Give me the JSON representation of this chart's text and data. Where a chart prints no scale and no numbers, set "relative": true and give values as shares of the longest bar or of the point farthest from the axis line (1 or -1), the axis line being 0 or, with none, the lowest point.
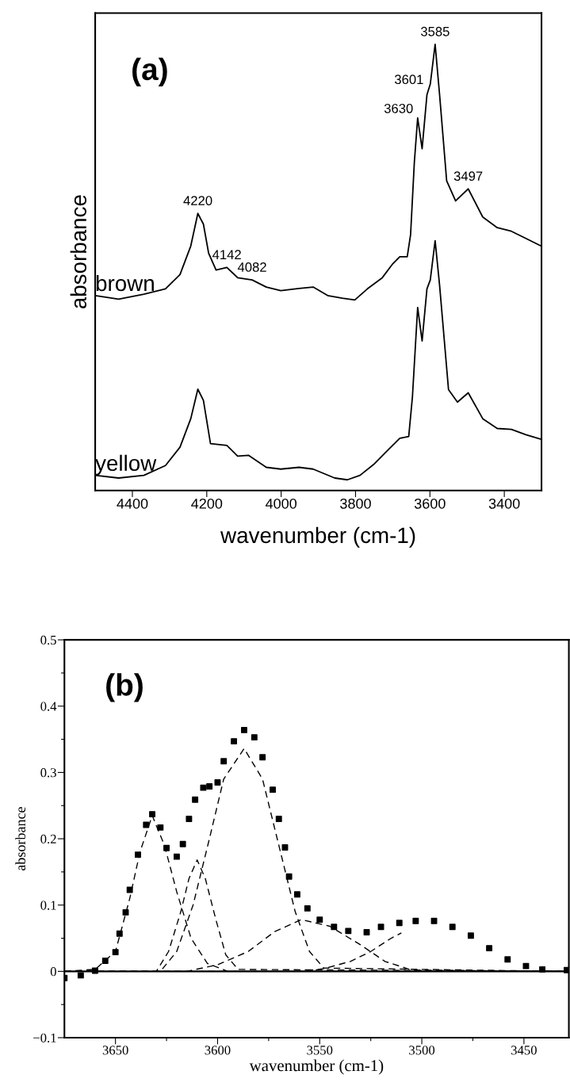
{
  "chart_data": [
    {
      "type": "line",
      "title": "(a)",
      "xlabel": "wavenumber (cm-1)",
      "ylabel": "absorbance",
      "relative": true,
      "xlim": [
        4500,
        3300
      ],
      "xticks": [
        4400,
        4200,
        4000,
        3800,
        3600,
        3400
      ],
      "grid": false,
      "legend": false,
      "series": [
        {
          "name": "brown",
          "color": "#000000",
          "x": [
            4500,
            4437,
            4369,
            4311,
            4272,
            4243,
            4224,
            4209,
            4195,
            4175,
            4146,
            4117,
            4078,
            4040,
            4001,
            3952,
            3914,
            3875,
            3836,
            3802,
            3768,
            3729,
            3700,
            3681,
            3661,
            3652,
            3642,
            3633,
            3621,
            3608,
            3599,
            3586,
            3574,
            3555,
            3531,
            3497,
            3458,
            3419,
            3381,
            3342,
            3301
          ],
          "values": [
            0.437,
            0.429,
            0.44,
            0.452,
            0.484,
            0.548,
            0.621,
            0.597,
            0.532,
            0.494,
            0.5,
            0.477,
            0.472,
            0.456,
            0.448,
            0.453,
            0.456,
            0.437,
            0.431,
            0.427,
            0.452,
            0.476,
            0.508,
            0.524,
            0.524,
            0.573,
            0.734,
            0.835,
            0.766,
            0.887,
            0.911,
            1.0,
            0.887,
            0.694,
            0.649,
            0.676,
            0.613,
            0.589,
            0.581,
            0.565,
            0.548
          ]
        },
        {
          "name": "yellow",
          "color": "#000000",
          "x": [
            4500,
            4437,
            4369,
            4311,
            4272,
            4243,
            4224,
            4209,
            4190,
            4146,
            4117,
            4088,
            4040,
            4001,
            3952,
            3914,
            3856,
            3822,
            3788,
            3749,
            3710,
            3681,
            3657,
            3647,
            3633,
            3621,
            3608,
            3599,
            3586,
            3574,
            3550,
            3526,
            3497,
            3458,
            3419,
            3381,
            3342,
            3301
          ],
          "values": [
            0.034,
            0.028,
            0.034,
            0.056,
            0.097,
            0.161,
            0.227,
            0.202,
            0.105,
            0.101,
            0.077,
            0.079,
            0.052,
            0.048,
            0.052,
            0.048,
            0.028,
            0.024,
            0.034,
            0.06,
            0.093,
            0.117,
            0.121,
            0.21,
            0.41,
            0.335,
            0.452,
            0.472,
            0.56,
            0.46,
            0.226,
            0.198,
            0.219,
            0.161,
            0.139,
            0.137,
            0.125,
            0.115
          ]
        }
      ],
      "annotations": [
        {
          "text": "4220",
          "x": 4224,
          "y": 0.621
        },
        {
          "text": "4142",
          "x": 4146,
          "y": 0.5
        },
        {
          "text": "4082",
          "x": 4078,
          "y": 0.472
        },
        {
          "text": "3630",
          "x": 3633,
          "y": 0.835
        },
        {
          "text": "3601",
          "x": 3605,
          "y": 0.9
        },
        {
          "text": "3585",
          "x": 3586,
          "y": 1.0
        },
        {
          "text": "3497",
          "x": 3497,
          "y": 0.676
        }
      ]
    },
    {
      "type": "line",
      "title": "(b)",
      "xlabel": "wavenumber (cm-1)",
      "ylabel": "absorbance",
      "xlim": [
        3675,
        3428
      ],
      "ylim": [
        -0.1,
        0.5
      ],
      "xticks": [
        3650,
        {
          "value": 3625,
          "label": null
        },
        3600,
        {
          "value": 3575,
          "label": null
        },
        3550,
        {
          "value": 3525,
          "label": null
        },
        3500,
        {
          "value": 3475,
          "label": null
        },
        3450
      ],
      "yticks": [
        {
          "value": -0.1,
          "label": "−0.1"
        },
        {
          "value": -0.05,
          "label": null
        },
        0,
        {
          "value": 0.05,
          "label": null
        },
        0.1,
        {
          "value": 0.15,
          "label": null
        },
        0.2,
        {
          "value": 0.25,
          "label": null
        },
        0.3,
        {
          "value": 0.35,
          "label": null
        },
        0.4,
        {
          "value": 0.45,
          "label": null
        },
        0.5
      ],
      "grid": false,
      "legend": false,
      "ref_lines": [
        {
          "axis": "y",
          "value": 0,
          "label": null,
          "color": "#000000",
          "line_style": "solid"
        }
      ],
      "series": [
        {
          "type": "scatter",
          "marker": "square",
          "color": "#000000",
          "x": [
            3675,
            3667,
            3660,
            3655,
            3650,
            3648,
            3645,
            3643,
            3639,
            3635,
            3632,
            3628,
            3625,
            3620,
            3617,
            3614,
            3611,
            3607,
            3604,
            3600,
            3597,
            3592,
            3587,
            3582,
            3578,
            3573,
            3570,
            3567,
            3565,
            3561,
            3556,
            3550,
            3543,
            3536,
            3527,
            3520,
            3511,
            3503,
            3494,
            3485,
            3476,
            3467,
            3458,
            3449,
            3441,
            3429
          ],
          "values": [
            -0.01,
            -0.006,
            0.001,
            0.016,
            0.029,
            0.057,
            0.089,
            0.123,
            0.176,
            0.221,
            0.237,
            0.217,
            0.186,
            0.173,
            0.192,
            0.23,
            0.259,
            0.277,
            0.279,
            0.285,
            0.317,
            0.347,
            0.364,
            0.353,
            0.323,
            0.274,
            0.23,
            0.187,
            0.143,
            0.116,
            0.095,
            0.078,
            0.067,
            0.061,
            0.059,
            0.067,
            0.073,
            0.076,
            0.076,
            0.067,
            0.054,
            0.035,
            0.018,
            0.008,
            0.003,
            0.002
          ]
        },
        {
          "type": "line",
          "line_style": "dashed",
          "color": "#000000",
          "x": [
            3675,
            3660,
            3650,
            3643,
            3638,
            3632,
            3626,
            3620,
            3613,
            3605,
            3595,
            3430
          ],
          "values": [
            0,
            0.003,
            0.03,
            0.11,
            0.18,
            0.235,
            0.19,
            0.12,
            0.05,
            0.012,
            0,
            0
          ]
        },
        {
          "type": "line",
          "line_style": "dashed",
          "color": "#000000",
          "x": [
            3675,
            3630,
            3624,
            3618,
            3614,
            3610,
            3606,
            3601,
            3596,
            3590,
            3430
          ],
          "values": [
            0,
            0,
            0.03,
            0.09,
            0.14,
            0.168,
            0.14,
            0.08,
            0.025,
            0.003,
            0
          ]
        },
        {
          "type": "line",
          "line_style": "dashed",
          "color": "#000000",
          "x": [
            3675,
            3628,
            3620,
            3612,
            3604,
            3597,
            3587,
            3578,
            3570,
            3562,
            3555,
            3548,
            3430
          ],
          "values": [
            0,
            0,
            0.03,
            0.1,
            0.2,
            0.29,
            0.336,
            0.29,
            0.19,
            0.09,
            0.03,
            0.005,
            0
          ]
        },
        {
          "type": "line",
          "line_style": "dashed",
          "color": "#000000",
          "x": [
            3675,
            3615,
            3600,
            3585,
            3572,
            3559,
            3545,
            3530,
            3518,
            3505,
            3430
          ],
          "values": [
            0,
            0,
            0.01,
            0.03,
            0.06,
            0.078,
            0.068,
            0.04,
            0.015,
            0.002,
            0
          ]
        },
        {
          "type": "line",
          "line_style": "dashed",
          "color": "#000000",
          "x": [
            3675,
            3560,
            3548,
            3535,
            3525,
            3515,
            3510
          ],
          "values": [
            0,
            0,
            0.004,
            0.015,
            0.03,
            0.05,
            0.058
          ]
        }
      ]
    }
  ]
}
